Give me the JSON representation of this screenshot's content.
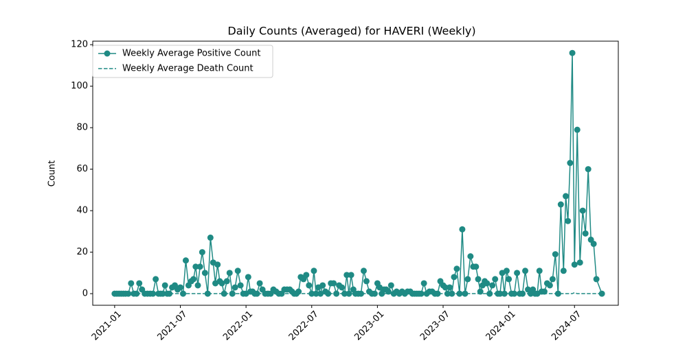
{
  "chart_data": {
    "type": "line",
    "title": "Daily Counts (Averaged) for HAVERI (Weekly)",
    "ylabel": "Count",
    "x": [
      "2021-01",
      "2021-01",
      "2021-01",
      "2021-01",
      "2021-01",
      "2021-02",
      "2021-02",
      "2021-02",
      "2021-02",
      "2021-03",
      "2021-03",
      "2021-03",
      "2021-03",
      "2021-04",
      "2021-04",
      "2021-04",
      "2021-04",
      "2021-05",
      "2021-05",
      "2021-05",
      "2021-05",
      "2021-05",
      "2021-06",
      "2021-06",
      "2021-06",
      "2021-06",
      "2021-07",
      "2021-07",
      "2021-07",
      "2021-07",
      "2021-08",
      "2021-08",
      "2021-08",
      "2021-08",
      "2021-08",
      "2021-09",
      "2021-09",
      "2021-09",
      "2021-09",
      "2021-10",
      "2021-10",
      "2021-10",
      "2021-10",
      "2021-10",
      "2021-11",
      "2021-11",
      "2021-11",
      "2021-11",
      "2021-12",
      "2021-12",
      "2021-12",
      "2021-12",
      "2022-01",
      "2022-01",
      "2022-01",
      "2022-01",
      "2022-01",
      "2022-02",
      "2022-02",
      "2022-02",
      "2022-02",
      "2022-03",
      "2022-03",
      "2022-03",
      "2022-03",
      "2022-04",
      "2022-04",
      "2022-04",
      "2022-04",
      "2022-05",
      "2022-05",
      "2022-05",
      "2022-05",
      "2022-05",
      "2022-06",
      "2022-06",
      "2022-06",
      "2022-06",
      "2022-07",
      "2022-07",
      "2022-07",
      "2022-07",
      "2022-07",
      "2022-08",
      "2022-08",
      "2022-08",
      "2022-08",
      "2022-09",
      "2022-09",
      "2022-09",
      "2022-09",
      "2022-10",
      "2022-10",
      "2022-10",
      "2022-10",
      "2022-10",
      "2022-11",
      "2022-11",
      "2022-11",
      "2022-11",
      "2022-12",
      "2022-12",
      "2022-12",
      "2022-12",
      "2023-01",
      "2023-01",
      "2023-01",
      "2023-01",
      "2023-01",
      "2023-02",
      "2023-02",
      "2023-02",
      "2023-02",
      "2023-03",
      "2023-03",
      "2023-03",
      "2023-03",
      "2023-04",
      "2023-04",
      "2023-04",
      "2023-04",
      "2023-04",
      "2023-05",
      "2023-05",
      "2023-05",
      "2023-05",
      "2023-06",
      "2023-06",
      "2023-06",
      "2023-06",
      "2023-07",
      "2023-07",
      "2023-07",
      "2023-07",
      "2023-07",
      "2023-08",
      "2023-08",
      "2023-08",
      "2023-08",
      "2023-09",
      "2023-09",
      "2023-09",
      "2023-09",
      "2023-10",
      "2023-10",
      "2023-10",
      "2023-10",
      "2023-10",
      "2023-11",
      "2023-11",
      "2023-11",
      "2023-11",
      "2023-12",
      "2023-12",
      "2023-12",
      "2023-12",
      "2023-12",
      "2024-01",
      "2024-01",
      "2024-01",
      "2024-01",
      "2024-02",
      "2024-02",
      "2024-02",
      "2024-02",
      "2024-03",
      "2024-03",
      "2024-03",
      "2024-03",
      "2024-03",
      "2024-04",
      "2024-04",
      "2024-04",
      "2024-04",
      "2024-05",
      "2024-05",
      "2024-05",
      "2024-05",
      "2024-06",
      "2024-06",
      "2024-06",
      "2024-06",
      "2024-06",
      "2024-07",
      "2024-07",
      "2024-07",
      "2024-07",
      "2024-08",
      "2024-08",
      "2024-08",
      "2024-08",
      "2024-09",
      "2024-09"
    ],
    "series": [
      {
        "name": "Weekly Average Positive Count",
        "color": "#1f8a84",
        "linestyle": "solid",
        "marker": true,
        "values": [
          0,
          0,
          0,
          0,
          0,
          0,
          0,
          5,
          0,
          0,
          5,
          2,
          0,
          0,
          0,
          0,
          7,
          0,
          0,
          0,
          4,
          0,
          0,
          3,
          4,
          2,
          3,
          0,
          16,
          4,
          6,
          7,
          13,
          4,
          13,
          20,
          10,
          0,
          27,
          15,
          5,
          14,
          6,
          5,
          0,
          6,
          10,
          0,
          3,
          11,
          4,
          0,
          0,
          8,
          1,
          1,
          0,
          0,
          5,
          2,
          0,
          0,
          0,
          2,
          1,
          0,
          0,
          2,
          2,
          2,
          1,
          0,
          0,
          1,
          8,
          7,
          9,
          4,
          0,
          11,
          0,
          3,
          0,
          4,
          1,
          0,
          5,
          5,
          0,
          4,
          3,
          0,
          9,
          0,
          9,
          2,
          0,
          0,
          0,
          11,
          6,
          1,
          0,
          0,
          5,
          3,
          0,
          2,
          2,
          1,
          4,
          0,
          1,
          0,
          1,
          0,
          1,
          1,
          0,
          0,
          0,
          0,
          0,
          5,
          0,
          1,
          1,
          0,
          0,
          6,
          4,
          3,
          0,
          3,
          0,
          8,
          12,
          0,
          31,
          0,
          7,
          18,
          13,
          13,
          7,
          1,
          4,
          6,
          5,
          0,
          4,
          7,
          0,
          0,
          10,
          0,
          11,
          7,
          0,
          0,
          10,
          0,
          0,
          11,
          2,
          0,
          2,
          0,
          0,
          11,
          1,
          1,
          5,
          4,
          7,
          19,
          0,
          43,
          11,
          47,
          35,
          63,
          116,
          14,
          79,
          15,
          40,
          29,
          60,
          26,
          24,
          7,
          0
        ]
      },
      {
        "name": "Weekly Average Death Count",
        "color": "#1f8a84",
        "linestyle": "dashed",
        "marker": false,
        "values": [
          0,
          0,
          0,
          0,
          0,
          0,
          0,
          0,
          0,
          0,
          0,
          0,
          0,
          0,
          0,
          0,
          0,
          0,
          0,
          0,
          0,
          0,
          0,
          0,
          0,
          0,
          0,
          0,
          0,
          0,
          0,
          0,
          0,
          0,
          0,
          0,
          0,
          0,
          0,
          0,
          0,
          0,
          0,
          0,
          0,
          0,
          0,
          0,
          0,
          0,
          0,
          0,
          0,
          0,
          0,
          0,
          0,
          0,
          0,
          0,
          0,
          0,
          0,
          0,
          0,
          0,
          0,
          0,
          0,
          0,
          0,
          0,
          0,
          0,
          0,
          0,
          0,
          0,
          0,
          0,
          0,
          0,
          0,
          0,
          0,
          0,
          0,
          0,
          0,
          0,
          0,
          0,
          0,
          0,
          0,
          0,
          0,
          0,
          0,
          0,
          0,
          0,
          0,
          0,
          0,
          0,
          0,
          0,
          0,
          0,
          0,
          0,
          0,
          0,
          0,
          0,
          0,
          0,
          0,
          0,
          0,
          0,
          0,
          0,
          0,
          0,
          0,
          0,
          0,
          0,
          0,
          0,
          0,
          0,
          0,
          0,
          0,
          0,
          0,
          0,
          0,
          0,
          0,
          0,
          0,
          0,
          0,
          0,
          0,
          0,
          0,
          0,
          0,
          0,
          0,
          0,
          0,
          0,
          0,
          0,
          0,
          0,
          0,
          0,
          0,
          0,
          0,
          0,
          0,
          0,
          0,
          0,
          0,
          0,
          0,
          0,
          0,
          0,
          0,
          0,
          0,
          0,
          0,
          0.5,
          0,
          0,
          0,
          0,
          0,
          0,
          0,
          0,
          0
        ]
      }
    ],
    "xlim": [
      "2020-11",
      "2024-11"
    ],
    "xticks": [
      "2021-01",
      "2021-07",
      "2022-01",
      "2022-07",
      "2023-01",
      "2023-07",
      "2024-01",
      "2024-07"
    ],
    "ylim": [
      -5.6,
      121.7
    ],
    "yticks": [
      0,
      20,
      40,
      60,
      80,
      100,
      120
    ],
    "legend": "upper left"
  }
}
